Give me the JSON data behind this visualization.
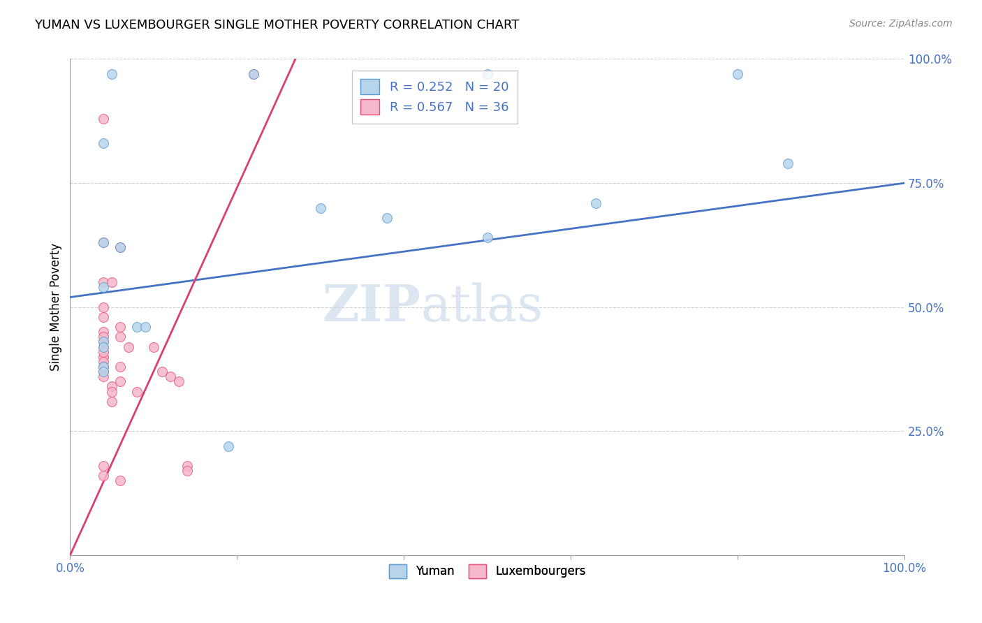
{
  "title": "YUMAN VS LUXEMBOURGER SINGLE MOTHER POVERTY CORRELATION CHART",
  "source": "Source: ZipAtlas.com",
  "ylabel": "Single Mother Poverty",
  "xlim": [
    0,
    1
  ],
  "ylim": [
    0,
    1
  ],
  "ytick_labels": [
    "25.0%",
    "50.0%",
    "75.0%",
    "100.0%"
  ],
  "ytick_positions": [
    0.25,
    0.5,
    0.75,
    1.0
  ],
  "watermark": "ZIPatlas",
  "yuman_color": "#b8d4ea",
  "luxembourger_color": "#f5b8cb",
  "yuman_edge_color": "#5b9bd5",
  "luxembourger_edge_color": "#e8507a",
  "yuman_line_color": "#4472c4",
  "luxembourger_line_color": "#d94070",
  "yuman_R": 0.252,
  "yuman_N": 20,
  "luxembourger_R": 0.567,
  "luxembourger_N": 36,
  "yuman_line_x": [
    0.0,
    1.0
  ],
  "yuman_line_y": [
    0.52,
    0.75
  ],
  "luxembourger_line_x": [
    0.0,
    0.27
  ],
  "luxembourger_line_y": [
    0.0,
    1.0
  ],
  "yuman_points": [
    [
      0.05,
      0.97
    ],
    [
      0.22,
      0.97
    ],
    [
      0.5,
      0.97
    ],
    [
      0.8,
      0.97
    ],
    [
      0.04,
      0.83
    ],
    [
      0.3,
      0.7
    ],
    [
      0.38,
      0.68
    ],
    [
      0.5,
      0.64
    ],
    [
      0.63,
      0.71
    ],
    [
      0.04,
      0.63
    ],
    [
      0.06,
      0.62
    ],
    [
      0.04,
      0.54
    ],
    [
      0.08,
      0.46
    ],
    [
      0.09,
      0.46
    ],
    [
      0.04,
      0.43
    ],
    [
      0.04,
      0.42
    ],
    [
      0.04,
      0.38
    ],
    [
      0.04,
      0.37
    ],
    [
      0.19,
      0.22
    ],
    [
      0.86,
      0.79
    ]
  ],
  "luxembourger_points": [
    [
      0.22,
      0.97
    ],
    [
      0.04,
      0.88
    ],
    [
      0.04,
      0.63
    ],
    [
      0.06,
      0.62
    ],
    [
      0.04,
      0.55
    ],
    [
      0.05,
      0.55
    ],
    [
      0.04,
      0.5
    ],
    [
      0.04,
      0.48
    ],
    [
      0.04,
      0.43
    ],
    [
      0.04,
      0.42
    ],
    [
      0.04,
      0.4
    ],
    [
      0.04,
      0.39
    ],
    [
      0.04,
      0.37
    ],
    [
      0.04,
      0.36
    ],
    [
      0.05,
      0.34
    ],
    [
      0.05,
      0.33
    ],
    [
      0.05,
      0.31
    ],
    [
      0.06,
      0.46
    ],
    [
      0.06,
      0.44
    ],
    [
      0.07,
      0.42
    ],
    [
      0.1,
      0.42
    ],
    [
      0.11,
      0.37
    ],
    [
      0.12,
      0.36
    ],
    [
      0.13,
      0.35
    ],
    [
      0.04,
      0.45
    ],
    [
      0.04,
      0.44
    ],
    [
      0.04,
      0.41
    ],
    [
      0.04,
      0.38
    ],
    [
      0.06,
      0.38
    ],
    [
      0.06,
      0.35
    ],
    [
      0.08,
      0.33
    ],
    [
      0.14,
      0.18
    ],
    [
      0.14,
      0.17
    ],
    [
      0.04,
      0.18
    ],
    [
      0.04,
      0.16
    ],
    [
      0.06,
      0.15
    ]
  ]
}
